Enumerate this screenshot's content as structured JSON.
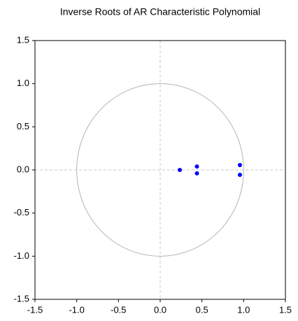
{
  "chart_data": {
    "type": "scatter",
    "title": "Inverse Roots of AR Characteristic Polynomial",
    "x": [
      0.235,
      0.44,
      0.44,
      0.955,
      0.955
    ],
    "y": [
      0.0,
      0.04,
      -0.04,
      0.057,
      -0.057
    ],
    "color": "#0000ff",
    "xlim": [
      -1.5,
      1.5
    ],
    "ylim": [
      -1.5,
      1.5
    ],
    "xticks": [
      -1.5,
      {
        "value": -1.0,
        "label": "-1.0"
      },
      -0.5,
      {
        "value": 0.0,
        "label": "0.0"
      },
      0.5,
      {
        "value": 1.0,
        "label": "1.0"
      },
      1.5
    ],
    "yticks": [
      -1.5,
      {
        "value": -1.0,
        "label": "-1.0"
      },
      -0.5,
      {
        "value": 0.0,
        "label": "0.0"
      },
      0.5,
      {
        "value": 1.0,
        "label": "1.0"
      },
      1.5
    ],
    "unit_circle": true,
    "zero_lines": true
  }
}
